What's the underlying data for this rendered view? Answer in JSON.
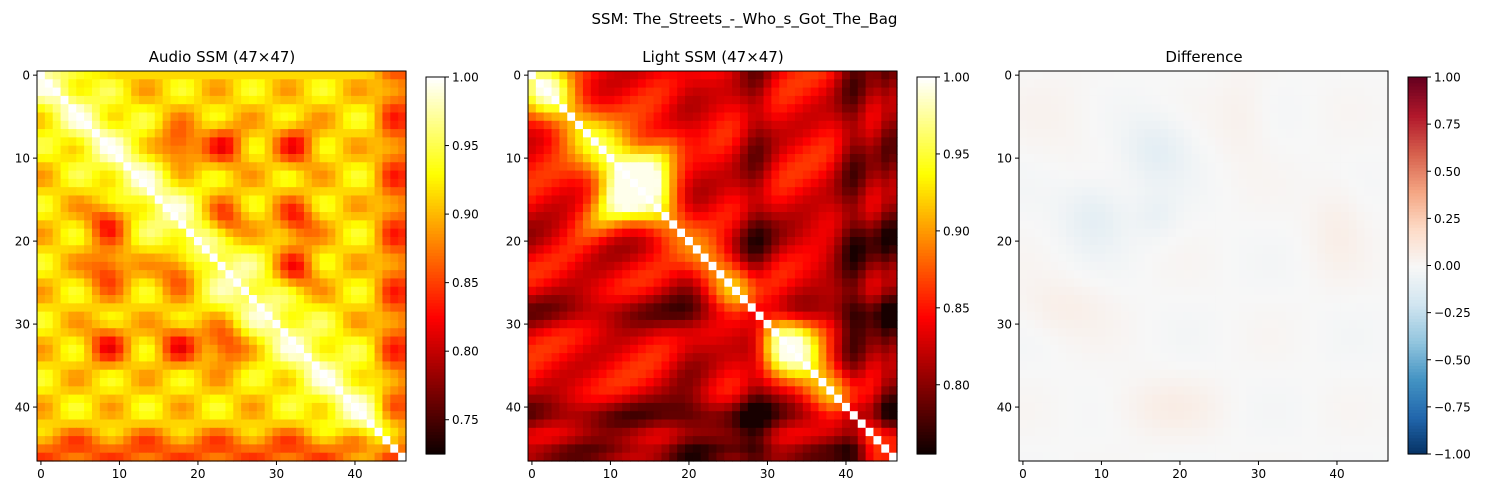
{
  "figure": {
    "suptitle": "SSM: The_Streets_-_Who_s_Got_The_Bag"
  },
  "chart_data": [
    {
      "type": "heatmap",
      "title": "Audio SSM (47×47)",
      "size": 47,
      "colormap": "hot",
      "clim": [
        0.725,
        1.0
      ],
      "xticks": [
        0,
        10,
        20,
        30,
        40
      ],
      "yticks": [
        0,
        10,
        20,
        30,
        40
      ],
      "colorbar_ticks": [
        "0.75",
        "0.80",
        "0.85",
        "0.90",
        "0.95",
        "1.00"
      ],
      "colorbar_values": [
        0.75,
        0.8,
        0.85,
        0.9,
        0.95,
        1.0
      ],
      "description_values": {
        "diagonal": 1.0,
        "min": 0.73,
        "structure": "recurring sections around frames 8-9, 17-18, 23-24, 32-33; dark stripes near last rows/columns 44-46"
      }
    },
    {
      "type": "heatmap",
      "title": "Light SSM (47×47)",
      "size": 47,
      "colormap": "hot",
      "clim": [
        0.755,
        1.0
      ],
      "xticks": [
        0,
        10,
        20,
        30,
        40
      ],
      "yticks": [
        0,
        10,
        20,
        30,
        40
      ],
      "colorbar_ticks": [
        "0.80",
        "0.85",
        "0.90",
        "0.95",
        "1.00"
      ],
      "colorbar_values": [
        0.8,
        0.85,
        0.9,
        0.95,
        1.0
      ],
      "description_values": {
        "diagonal": 1.0,
        "min": 0.76,
        "structure": "bright X centered near frame 13, bright block around frames 31-35, dark bands near frames 28-29, 39-42 and 45-46"
      }
    },
    {
      "type": "heatmap",
      "title": "Difference",
      "size": 47,
      "colormap": "RdBu_r",
      "clim": [
        -1.0,
        1.0
      ],
      "xticks": [
        0,
        10,
        20,
        30,
        40
      ],
      "yticks": [
        0,
        10,
        20,
        30,
        40
      ],
      "colorbar_ticks": [
        "1.00",
        "0.75",
        "0.50",
        "0.25",
        "0.00",
        "−0.25",
        "−0.50",
        "−0.75",
        "−1.00"
      ],
      "colorbar_values": [
        1.0,
        0.75,
        0.5,
        0.25,
        0.0,
        -0.25,
        -0.5,
        -0.75,
        -1.0
      ],
      "description_values": {
        "range_observed": [
          -0.12,
          0.1
        ],
        "structure": "faint values near zero; slight negatives around frames 8-18, slight positives around frames 28-44"
      }
    }
  ]
}
